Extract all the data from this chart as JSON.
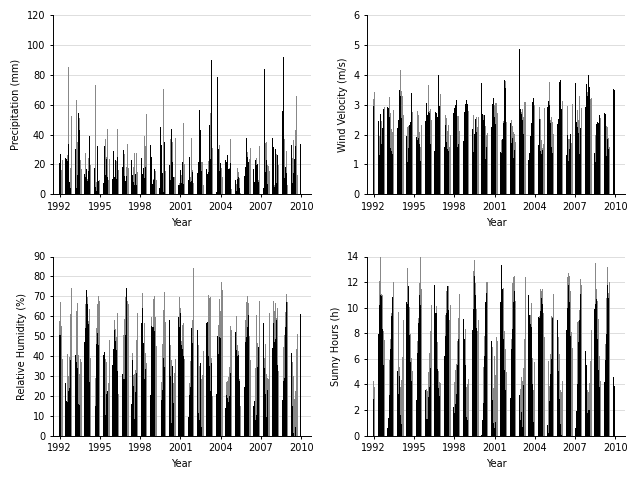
{
  "subplots": [
    {
      "ylabel": "Precipitation (mm)",
      "xlabel": "Year",
      "ylim": [
        0,
        120
      ],
      "yticks": [
        0,
        20,
        40,
        60,
        80,
        100,
        120
      ]
    },
    {
      "ylabel": "Wind Velocity (m/s)",
      "xlabel": "Year",
      "ylim": [
        0,
        6
      ],
      "yticks": [
        0,
        1,
        2,
        3,
        4,
        5,
        6
      ]
    },
    {
      "ylabel": "Relative Humidity (%)",
      "xlabel": "Year",
      "ylim": [
        0,
        90
      ],
      "yticks": [
        0,
        10,
        20,
        30,
        40,
        50,
        60,
        70,
        80,
        90
      ]
    },
    {
      "ylabel": "Sunny Hours (h)",
      "xlabel": "Year",
      "ylim": [
        0,
        14
      ],
      "yticks": [
        0,
        2,
        4,
        6,
        8,
        10,
        12,
        14
      ]
    }
  ],
  "xticks": [
    1992,
    1995,
    1998,
    2001,
    2004,
    2007,
    2010
  ],
  "xlim": [
    1991.5,
    2010.7
  ],
  "color_gray": "#888888",
  "color_black": "#000000",
  "background": "#ffffff",
  "figsize": [
    6.4,
    4.8
  ],
  "dpi": 100,
  "n_months": 216,
  "start_year": 1992
}
